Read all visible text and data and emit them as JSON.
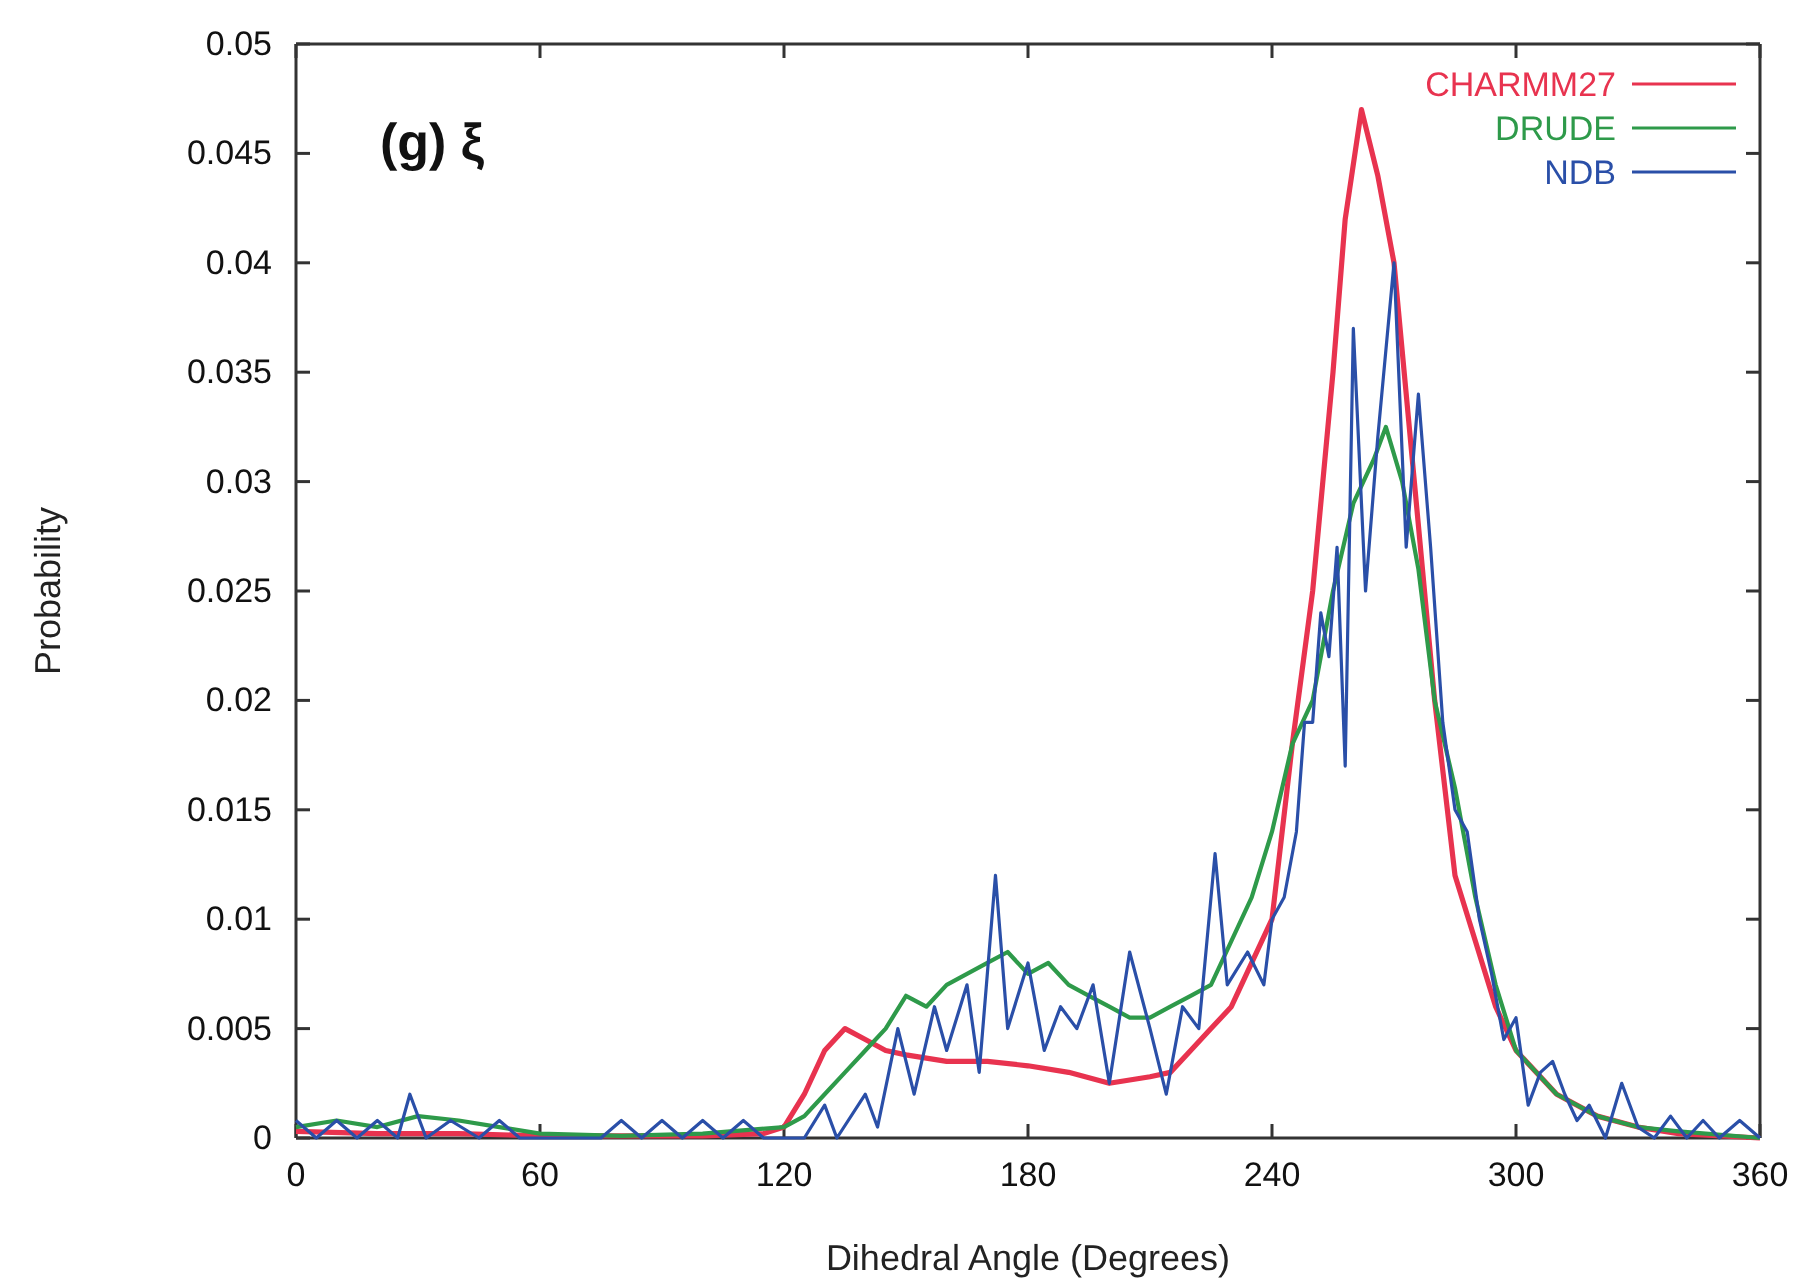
{
  "chart_data": {
    "type": "line",
    "xlabel": "Dihedral Angle (Degrees)",
    "ylabel": "Probability",
    "annotations": [
      "(g) ξ"
    ],
    "xlim": [
      0,
      360
    ],
    "xticks": [
      0,
      60,
      120,
      180,
      240,
      300,
      360
    ],
    "ylim": [
      0,
      0.05
    ],
    "yticks": [
      0,
      0.005,
      0.01,
      0.015,
      0.02,
      0.025,
      0.03,
      0.035,
      0.04,
      0.045,
      0.05
    ],
    "legend": "top right",
    "grid": false,
    "line_style": "solid",
    "marker": "none",
    "series": [
      {
        "name": "CHARMM27",
        "color": "#e8334f",
        "x": [
          0,
          20,
          40,
          60,
          80,
          100,
          115,
          120,
          125,
          130,
          135,
          140,
          145,
          150,
          160,
          170,
          180,
          190,
          200,
          210,
          215,
          220,
          225,
          230,
          235,
          240,
          245,
          250,
          255,
          258,
          262,
          266,
          270,
          275,
          280,
          285,
          290,
          295,
          300,
          305,
          310,
          320,
          330,
          340,
          360
        ],
        "values": [
          0.0003,
          0.0002,
          0.0002,
          0.0001,
          0.0001,
          0.0001,
          0.0002,
          0.0005,
          0.002,
          0.004,
          0.005,
          0.0045,
          0.004,
          0.0038,
          0.0035,
          0.0035,
          0.0033,
          0.003,
          0.0025,
          0.0028,
          0.003,
          0.004,
          0.005,
          0.006,
          0.008,
          0.01,
          0.018,
          0.025,
          0.035,
          0.042,
          0.047,
          0.044,
          0.04,
          0.03,
          0.02,
          0.012,
          0.009,
          0.006,
          0.004,
          0.003,
          0.002,
          0.001,
          0.0005,
          0.0002,
          0
        ]
      },
      {
        "name": "DRUDE",
        "color": "#2e9a4a",
        "x": [
          0,
          10,
          20,
          30,
          40,
          50,
          60,
          80,
          100,
          120,
          125,
          130,
          135,
          140,
          145,
          150,
          155,
          160,
          165,
          170,
          175,
          180,
          185,
          190,
          195,
          200,
          205,
          210,
          215,
          220,
          225,
          230,
          235,
          240,
          245,
          250,
          255,
          260,
          265,
          268,
          272,
          276,
          280,
          285,
          290,
          295,
          300,
          305,
          310,
          320,
          330,
          340,
          360
        ],
        "values": [
          0.0005,
          0.0008,
          0.0005,
          0.001,
          0.0008,
          0.0005,
          0.0002,
          0.0001,
          0.0002,
          0.0005,
          0.001,
          0.002,
          0.003,
          0.004,
          0.005,
          0.0065,
          0.006,
          0.007,
          0.0075,
          0.008,
          0.0085,
          0.0075,
          0.008,
          0.007,
          0.0065,
          0.006,
          0.0055,
          0.0055,
          0.006,
          0.0065,
          0.007,
          0.009,
          0.011,
          0.014,
          0.018,
          0.02,
          0.025,
          0.029,
          0.031,
          0.0325,
          0.03,
          0.026,
          0.02,
          0.016,
          0.011,
          0.007,
          0.004,
          0.003,
          0.002,
          0.001,
          0.0005,
          0.0003,
          0
        ]
      },
      {
        "name": "NDB",
        "color": "#2a4fa8",
        "x": [
          0,
          5,
          10,
          15,
          20,
          25,
          28,
          32,
          38,
          45,
          50,
          55,
          75,
          80,
          85,
          90,
          95,
          100,
          105,
          110,
          115,
          125,
          130,
          133,
          140,
          143,
          148,
          152,
          157,
          160,
          165,
          168,
          172,
          175,
          180,
          184,
          188,
          192,
          196,
          200,
          205,
          210,
          214,
          218,
          222,
          226,
          229,
          234,
          238,
          240,
          243,
          246,
          248,
          250,
          252,
          254,
          256,
          258,
          260,
          263,
          266,
          270,
          273,
          276,
          279,
          282,
          285,
          288,
          291,
          294,
          297,
          300,
          303,
          306,
          309,
          312,
          315,
          318,
          322,
          326,
          330,
          334,
          338,
          342,
          346,
          350,
          355,
          360
        ],
        "values": [
          0.0008,
          0,
          0.0008,
          0,
          0.0008,
          0,
          0.002,
          0,
          0.0008,
          0,
          0.0008,
          0,
          0,
          0.0008,
          0,
          0.0008,
          0,
          0.0008,
          0,
          0.0008,
          0,
          0,
          0.0015,
          0,
          0.002,
          0.0005,
          0.005,
          0.002,
          0.006,
          0.004,
          0.007,
          0.003,
          0.012,
          0.005,
          0.008,
          0.004,
          0.006,
          0.005,
          0.007,
          0.0025,
          0.0085,
          0.005,
          0.002,
          0.006,
          0.005,
          0.013,
          0.007,
          0.0085,
          0.007,
          0.01,
          0.011,
          0.014,
          0.019,
          0.019,
          0.024,
          0.022,
          0.027,
          0.017,
          0.037,
          0.025,
          0.032,
          0.04,
          0.027,
          0.034,
          0.027,
          0.019,
          0.015,
          0.014,
          0.01,
          0.0075,
          0.0045,
          0.0055,
          0.0015,
          0.003,
          0.0035,
          0.002,
          0.0008,
          0.0015,
          0,
          0.0025,
          0.0005,
          0,
          0.001,
          0,
          0.0008,
          0,
          0.0008,
          0
        ]
      }
    ]
  }
}
